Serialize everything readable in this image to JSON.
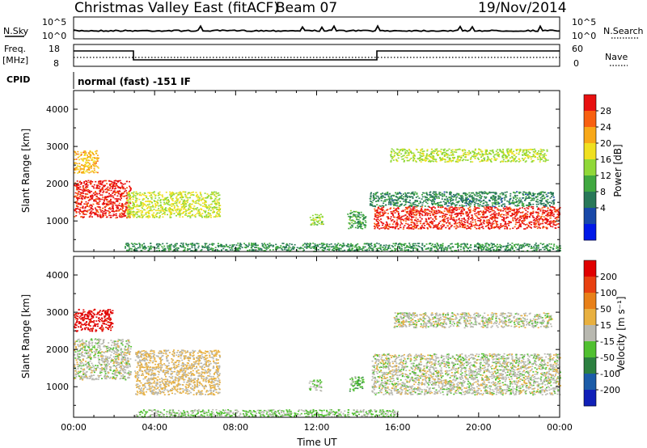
{
  "header": {
    "title": "Christmas Valley East (fitACF)",
    "beam": "Beam 07",
    "date": "19/Nov/2014"
  },
  "panels": {
    "nsky": {
      "label": "N.Sky",
      "ticks": [
        "10^5",
        "10^0"
      ],
      "right_label": "N.Search",
      "right_ticks": [
        "10^5",
        "10^0"
      ]
    },
    "freq": {
      "label_line1": "Freq.",
      "label_line2": "[MHz]",
      "ticks": [
        "18",
        "8"
      ],
      "right_label": "Nave",
      "right_ticks": [
        "60",
        "0"
      ]
    },
    "cpid": {
      "label": "CPID",
      "text": "normal (fast) -151 IF"
    }
  },
  "colors": {
    "power": [
      "#0018e8",
      "#1848a8",
      "#287858",
      "#40a840",
      "#90d838",
      "#f0e020",
      "#f8a818",
      "#f86010",
      "#e81010"
    ],
    "velocity": [
      "#1020b8",
      "#1c5ca8",
      "#2c8040",
      "#50c030",
      "#b8b8b0",
      "#e8b040",
      "#e88018",
      "#e84010",
      "#e00000"
    ],
    "ground_scatter": "#b8b8b0"
  },
  "chart_data": [
    {
      "type": "heatmap",
      "name": "power",
      "ylabel": "Slant Range [km]",
      "yticks": [
        "4000",
        "3000",
        "2000",
        "1000"
      ],
      "ylim": [
        180,
        4500
      ],
      "xlim": [
        0,
        24
      ],
      "colorbar": {
        "label": "Power [dB]",
        "ticks": [
          "28",
          "24",
          "20",
          "16",
          "12",
          "8",
          "4"
        ],
        "range": [
          0,
          30
        ]
      },
      "regions": [
        {
          "t": [
            0.0,
            2.8
          ],
          "r": [
            1100,
            2100
          ],
          "level": 28
        },
        {
          "t": [
            0.0,
            1.2
          ],
          "r": [
            2300,
            2900
          ],
          "level": 21
        },
        {
          "t": [
            2.6,
            7.2
          ],
          "r": [
            1100,
            1800
          ],
          "level": 17
        },
        {
          "t": [
            11.6,
            12.3
          ],
          "r": [
            900,
            1200
          ],
          "level": 15
        },
        {
          "t": [
            13.5,
            14.4
          ],
          "r": [
            800,
            1300
          ],
          "level": 11
        },
        {
          "t": [
            14.6,
            23.7
          ],
          "r": [
            1400,
            1800
          ],
          "level": 9
        },
        {
          "t": [
            14.8,
            24.0
          ],
          "r": [
            800,
            1400
          ],
          "level": 28
        },
        {
          "t": [
            15.6,
            23.4
          ],
          "r": [
            2600,
            2950
          ],
          "level": 16
        },
        {
          "t": [
            2.5,
            24.0
          ],
          "r": [
            200,
            420
          ],
          "level": 10
        }
      ]
    },
    {
      "type": "heatmap",
      "name": "velocity",
      "xlabel": "Time UT",
      "xticks": [
        "00:00",
        "04:00",
        "08:00",
        "12:00",
        "16:00",
        "20:00",
        "00:00"
      ],
      "ylabel": "Slant Range [km]",
      "yticks": [
        "4000",
        "3000",
        "2000",
        "1000"
      ],
      "ylim": [
        180,
        4500
      ],
      "xlim": [
        0,
        24
      ],
      "colorbar": {
        "label": "Velocity [m s⁻¹]",
        "ticks": [
          "200",
          "100",
          "50",
          "15",
          "-15",
          "-50",
          "-100",
          "-200"
        ],
        "range": [
          -250,
          250
        ]
      },
      "regions": [
        {
          "t": [
            0.0,
            1.9
          ],
          "r": [
            2500,
            3100
          ],
          "level": 230
        },
        {
          "t": [
            0.0,
            2.8
          ],
          "r": [
            1200,
            2300
          ],
          "level": 0
        },
        {
          "t": [
            3.0,
            7.2
          ],
          "r": [
            800,
            2000
          ],
          "level": 32
        },
        {
          "t": [
            11.6,
            12.2
          ],
          "r": [
            900,
            1200
          ],
          "level": -30
        },
        {
          "t": [
            13.6,
            14.3
          ],
          "r": [
            900,
            1300
          ],
          "level": -60
        },
        {
          "t": [
            14.7,
            24.0
          ],
          "r": [
            800,
            1900
          ],
          "level": 0
        },
        {
          "t": [
            15.8,
            23.6
          ],
          "r": [
            2600,
            3000
          ],
          "level": 0
        },
        {
          "t": [
            3.0,
            16.0
          ],
          "r": [
            200,
            400
          ],
          "level": -30
        }
      ]
    }
  ]
}
